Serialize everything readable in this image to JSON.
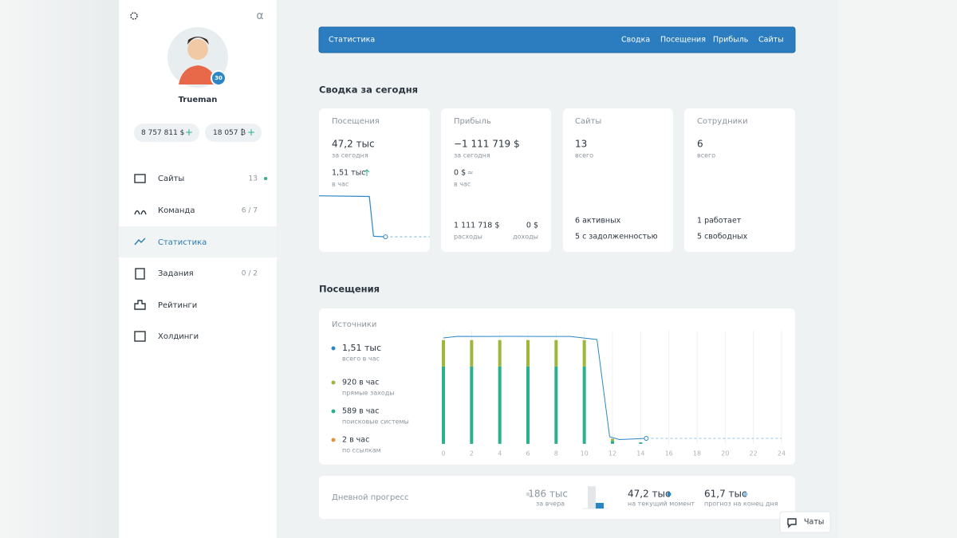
{
  "sidebar": {
    "avatar_level": "30",
    "username": "Trueman",
    "balances": [
      "8 757 811 $",
      "18 057 ₿"
    ],
    "menu": [
      {
        "label": "Сайты",
        "count": "13"
      },
      {
        "label": "Команда",
        "count": "6 / 7"
      },
      {
        "label": "Статистика"
      },
      {
        "label": "Задания",
        "count": "0 / 2"
      },
      {
        "label": "Рейтинги"
      },
      {
        "label": "Холдинги"
      }
    ]
  },
  "topbar": {
    "title": "Статистика",
    "tabs": [
      "Сводка",
      "Посещения",
      "Прибыль",
      "Сайты"
    ]
  },
  "summary": {
    "heading": "Сводка за сегодня",
    "cards": [
      {
        "title": "Посещения",
        "value": "47,2 тыс",
        "value_caption": "за сегодня",
        "rate": "1,51 тыс",
        "rate_caption": "в час"
      },
      {
        "title": "Прибыль",
        "value": "−1 111 719 $",
        "value_caption": "за сегодня",
        "rate": "0 $",
        "rate_caption": "в час",
        "expenses": "1 111 718 $",
        "expenses_caption": "расходы",
        "income": "0 $",
        "income_caption": "доходы"
      },
      {
        "title": "Сайты",
        "value": "13",
        "value_caption": "всего",
        "lines": [
          "6 активных",
          "5 с задолженностью"
        ]
      },
      {
        "title": "Сотрудники",
        "value": "6",
        "value_caption": "всего",
        "lines": [
          "1 работает",
          "5 свободных"
        ]
      }
    ]
  },
  "visits": {
    "heading": "Посещения",
    "sources_title": "Источники"
  },
  "progress": {
    "label": "Дневной прогресс",
    "captions": [
      "за вчера",
      "на текущий момент",
      "прогноз на конец дня"
    ],
    "forecast": "61,7 тыс"
  },
  "chat_button": "Чаты",
  "chart_data": [
    {
      "type": "bar",
      "xlim": [
        0,
        24
      ],
      "ylim": [
        0,
        1600
      ],
      "xticks": [
        0,
        2,
        4,
        6,
        8,
        10,
        12,
        14,
        16,
        18,
        20,
        22,
        24
      ],
      "grid": true,
      "x": [
        0,
        2,
        4,
        6,
        8,
        10,
        12,
        14
      ],
      "series": [
        {
          "type": "line",
          "name": "всего в час",
          "legend_label": "1,51 тыс",
          "color": "#2a86c6",
          "x": [
            0,
            1,
            3,
            5,
            7,
            9,
            10.9,
            11.8,
            12.5,
            14.4
          ],
          "values": [
            1448,
            1470,
            1468,
            1470,
            1468,
            1468,
            1426,
            98,
            60,
            76
          ]
        },
        {
          "type": "line",
          "color": "#8fc3e6",
          "dashed": true,
          "x": [
            14.4,
            24
          ],
          "values": [
            76,
            76
          ]
        },
        {
          "name": "прямые заходы",
          "legend_label": "920 в час",
          "color": "#9cb73a",
          "values": [
            360,
            360,
            360,
            360,
            360,
            360,
            30,
            null
          ]
        },
        {
          "name": "поисковые системы",
          "legend_label": "589 в час",
          "color": "#2bb08e",
          "values": [
            1056,
            1056,
            1056,
            1056,
            1056,
            1056,
            40,
            20
          ]
        },
        {
          "name": "по ссылкам",
          "legend_label": "2 в час",
          "color": "#d9963a",
          "values": [
            2,
            2,
            2,
            2,
            2,
            2,
            2,
            2
          ]
        }
      ]
    },
    {
      "type": "line",
      "xlim": [
        0,
        24
      ],
      "ylim": [
        0,
        1600
      ],
      "series": [
        {
          "color": "#2a86c6",
          "x": [
            0,
            10.9,
            11.8,
            14.4
          ],
          "values": [
            1448,
            1426,
            98,
            76
          ]
        },
        {
          "color": "#8fc3e6",
          "dashed": true,
          "x": [
            14.4,
            24
          ],
          "values": [
            76,
            76
          ]
        }
      ]
    },
    {
      "type": "bar",
      "ylim": [
        0,
        200
      ],
      "values": [
        186,
        47.2
      ],
      "value_labels": [
        "186 тыс",
        "47,2 тыс"
      ],
      "colors": [
        "#e3e7ea",
        "#2a86c6"
      ]
    }
  ]
}
